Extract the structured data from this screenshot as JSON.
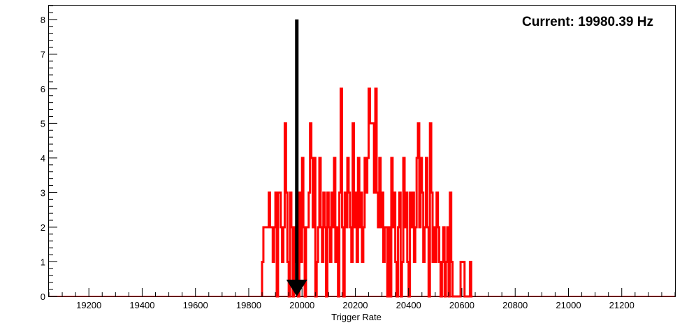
{
  "chart_data": {
    "type": "histogram",
    "xlabel": "Trigger Rate",
    "ylabel": "",
    "xlim": [
      19050,
      21400
    ],
    "ylim": [
      0,
      8.4
    ],
    "x_ticks": [
      19200,
      19400,
      19600,
      19800,
      20000,
      20200,
      20400,
      20600,
      20800,
      21000,
      21200
    ],
    "y_ticks": [
      0,
      1,
      2,
      3,
      4,
      5,
      6,
      7,
      8
    ],
    "annotation": "Current: 19980.39 Hz",
    "current_value": 19980.39,
    "arrow": {
      "x": 19980.39,
      "y_from": 8,
      "y_to": 0
    },
    "series": [
      {
        "color": "#ff0000",
        "bin_width": 5,
        "bins": [
          [
            19850,
            1
          ],
          [
            19855,
            2
          ],
          [
            19860,
            2
          ],
          [
            19865,
            2
          ],
          [
            19870,
            2
          ],
          [
            19875,
            3
          ],
          [
            19880,
            2
          ],
          [
            19885,
            2
          ],
          [
            19890,
            1
          ],
          [
            19895,
            2
          ],
          [
            19900,
            3
          ],
          [
            19905,
            0
          ],
          [
            19910,
            3
          ],
          [
            19915,
            3
          ],
          [
            19920,
            2
          ],
          [
            19925,
            1
          ],
          [
            19930,
            2
          ],
          [
            19935,
            5
          ],
          [
            19940,
            3
          ],
          [
            19945,
            1
          ],
          [
            19950,
            0
          ],
          [
            19955,
            3
          ],
          [
            19960,
            2
          ],
          [
            19965,
            0
          ],
          [
            19970,
            2
          ],
          [
            19975,
            1
          ],
          [
            19980,
            2
          ],
          [
            19985,
            0
          ],
          [
            19990,
            3
          ],
          [
            19995,
            1
          ],
          [
            20000,
            4
          ],
          [
            20005,
            2
          ],
          [
            20010,
            0
          ],
          [
            20015,
            2
          ],
          [
            20020,
            2
          ],
          [
            20025,
            3
          ],
          [
            20030,
            5
          ],
          [
            20035,
            4
          ],
          [
            20040,
            2
          ],
          [
            20045,
            4
          ],
          [
            20050,
            0
          ],
          [
            20055,
            1
          ],
          [
            20060,
            2
          ],
          [
            20065,
            4
          ],
          [
            20070,
            2
          ],
          [
            20075,
            1
          ],
          [
            20080,
            3
          ],
          [
            20085,
            2
          ],
          [
            20090,
            0
          ],
          [
            20095,
            3
          ],
          [
            20100,
            2
          ],
          [
            20105,
            1
          ],
          [
            20110,
            3
          ],
          [
            20115,
            2
          ],
          [
            20120,
            4
          ],
          [
            20125,
            1
          ],
          [
            20130,
            2
          ],
          [
            20135,
            0
          ],
          [
            20140,
            3
          ],
          [
            20145,
            6
          ],
          [
            20150,
            2
          ],
          [
            20155,
            0
          ],
          [
            20160,
            3
          ],
          [
            20165,
            2
          ],
          [
            20170,
            4
          ],
          [
            20175,
            3
          ],
          [
            20180,
            2
          ],
          [
            20185,
            1
          ],
          [
            20190,
            5
          ],
          [
            20195,
            2
          ],
          [
            20200,
            3
          ],
          [
            20205,
            1
          ],
          [
            20210,
            4
          ],
          [
            20215,
            2
          ],
          [
            20220,
            3
          ],
          [
            20225,
            1
          ],
          [
            20230,
            2
          ],
          [
            20235,
            4
          ],
          [
            20240,
            3
          ],
          [
            20245,
            4
          ],
          [
            20250,
            6
          ],
          [
            20255,
            5
          ],
          [
            20260,
            5
          ],
          [
            20265,
            5
          ],
          [
            20270,
            3
          ],
          [
            20275,
            6
          ],
          [
            20280,
            3
          ],
          [
            20285,
            2
          ],
          [
            20290,
            4
          ],
          [
            20295,
            2
          ],
          [
            20300,
            3
          ],
          [
            20305,
            1
          ],
          [
            20310,
            2
          ],
          [
            20315,
            2
          ],
          [
            20320,
            0
          ],
          [
            20325,
            2
          ],
          [
            20330,
            0
          ],
          [
            20335,
            4
          ],
          [
            20340,
            2
          ],
          [
            20345,
            3
          ],
          [
            20350,
            1
          ],
          [
            20355,
            0
          ],
          [
            20360,
            2
          ],
          [
            20365,
            3
          ],
          [
            20370,
            0
          ],
          [
            20375,
            1
          ],
          [
            20380,
            4
          ],
          [
            20385,
            2
          ],
          [
            20390,
            3
          ],
          [
            20395,
            1
          ],
          [
            20400,
            0
          ],
          [
            20405,
            3
          ],
          [
            20410,
            2
          ],
          [
            20415,
            3
          ],
          [
            20420,
            1
          ],
          [
            20425,
            2
          ],
          [
            20430,
            4
          ],
          [
            20435,
            5
          ],
          [
            20440,
            2
          ],
          [
            20445,
            4
          ],
          [
            20450,
            3
          ],
          [
            20455,
            1
          ],
          [
            20460,
            2
          ],
          [
            20465,
            4
          ],
          [
            20470,
            2
          ],
          [
            20475,
            0
          ],
          [
            20480,
            5
          ],
          [
            20485,
            3
          ],
          [
            20490,
            1
          ],
          [
            20495,
            2
          ],
          [
            20500,
            1
          ],
          [
            20505,
            3
          ],
          [
            20510,
            2
          ],
          [
            20515,
            1
          ],
          [
            20520,
            0
          ],
          [
            20525,
            1
          ],
          [
            20530,
            2
          ],
          [
            20535,
            0
          ],
          [
            20540,
            1
          ],
          [
            20545,
            2
          ],
          [
            20550,
            0
          ],
          [
            20555,
            3
          ],
          [
            20560,
            1
          ],
          [
            20565,
            0
          ],
          [
            20570,
            0
          ],
          [
            20575,
            0
          ],
          [
            20580,
            0
          ],
          [
            20585,
            0
          ],
          [
            20590,
            0
          ],
          [
            20595,
            1
          ],
          [
            20600,
            1
          ],
          [
            20605,
            1
          ],
          [
            20610,
            0
          ],
          [
            20615,
            0
          ],
          [
            20620,
            0
          ],
          [
            20625,
            0
          ],
          [
            20630,
            1
          ],
          [
            20635,
            0
          ]
        ]
      }
    ]
  }
}
